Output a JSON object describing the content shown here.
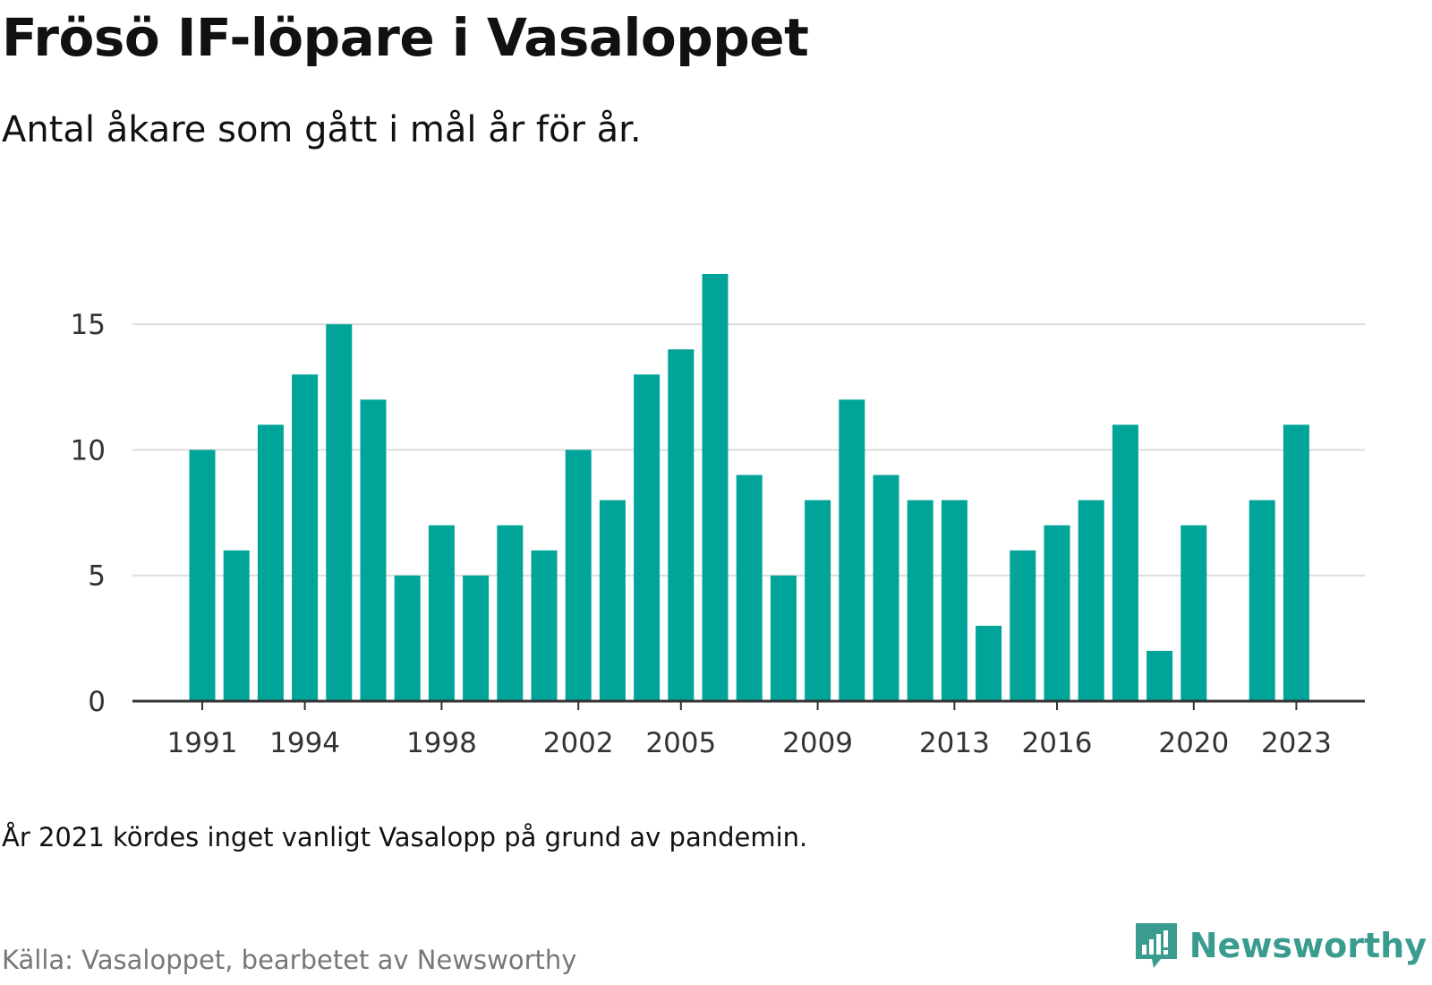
{
  "title": "Frösö IF-löpare i Vasaloppet",
  "subtitle": "Antal åkare som gått i mål år för år.",
  "note": "År 2021 kördes inget vanligt Vasalopp på grund av pandemin.",
  "source": "Källa: Vasaloppet, bearbetet av Newsworthy",
  "brand": {
    "name": "Newsworthy",
    "icon": "newsworthy-logo-icon",
    "color": "#3a9c8f"
  },
  "colors": {
    "bar": "#00a499",
    "grid": "#dddddd",
    "axis": "#333333",
    "tick_text": "#333333"
  },
  "chart_data": {
    "type": "bar",
    "title": "Frösö IF-löpare i Vasaloppet",
    "subtitle": "Antal åkare som gått i mål år för år.",
    "xlabel": "",
    "ylabel": "",
    "categories": [
      1991,
      1992,
      1993,
      1994,
      1995,
      1996,
      1997,
      1998,
      1999,
      2000,
      2001,
      2002,
      2003,
      2004,
      2005,
      2006,
      2007,
      2008,
      2009,
      2010,
      2011,
      2012,
      2013,
      2014,
      2015,
      2016,
      2017,
      2018,
      2019,
      2020,
      2021,
      2022,
      2023
    ],
    "values": [
      10,
      6,
      11,
      13,
      15,
      12,
      5,
      7,
      5,
      7,
      6,
      10,
      8,
      13,
      14,
      17,
      9,
      5,
      8,
      12,
      9,
      8,
      8,
      3,
      6,
      7,
      8,
      11,
      2,
      7,
      null,
      8,
      11
    ],
    "x_tick_labels": [
      "1991",
      "1994",
      "1998",
      "2002",
      "2005",
      "2009",
      "2013",
      "2016",
      "2020",
      "2023"
    ],
    "y_ticks": [
      0,
      5,
      10,
      15
    ],
    "ylim": [
      0,
      17
    ],
    "grid": true
  }
}
